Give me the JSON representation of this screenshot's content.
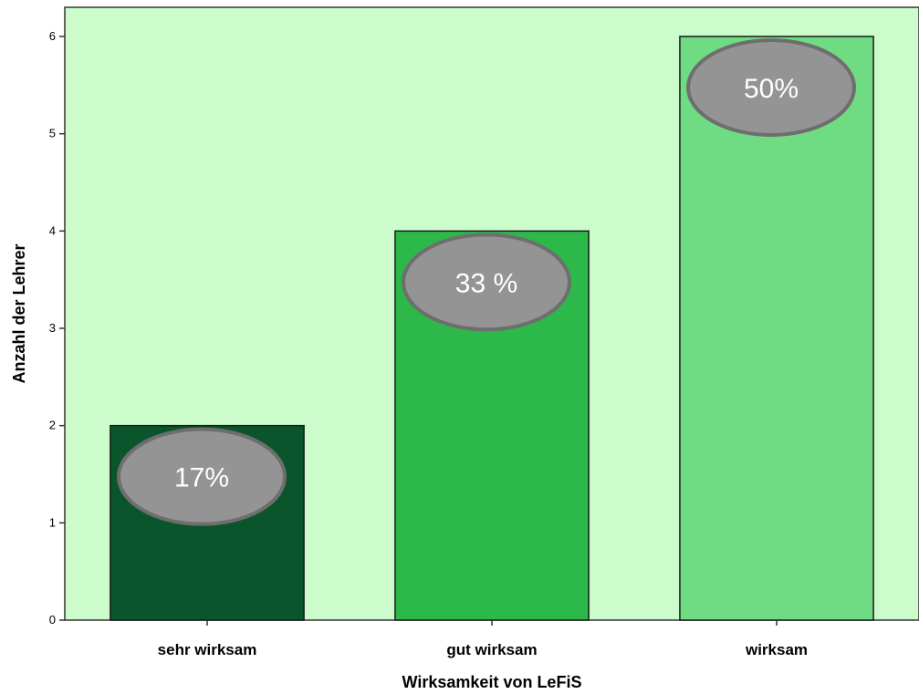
{
  "chart_data": {
    "type": "bar",
    "categories": [
      "sehr wirksam",
      "gut wirksam",
      "wirksam"
    ],
    "values": [
      2,
      4,
      6
    ],
    "annotations": [
      "17%",
      "33 %",
      "50%"
    ],
    "bar_colors": [
      "#0b552c",
      "#2db84a",
      "#6fdb82"
    ],
    "plot_background": "#ccfccc",
    "annotation_color": "#949494",
    "xlabel": "Wirksamkeit von LeFiS",
    "ylabel": "Anzahl der Lehrer",
    "ylim": [
      0,
      6.3
    ],
    "yticks": [
      "0",
      "1",
      "2",
      "3",
      "4",
      "5",
      "6"
    ],
    "grid": false
  }
}
